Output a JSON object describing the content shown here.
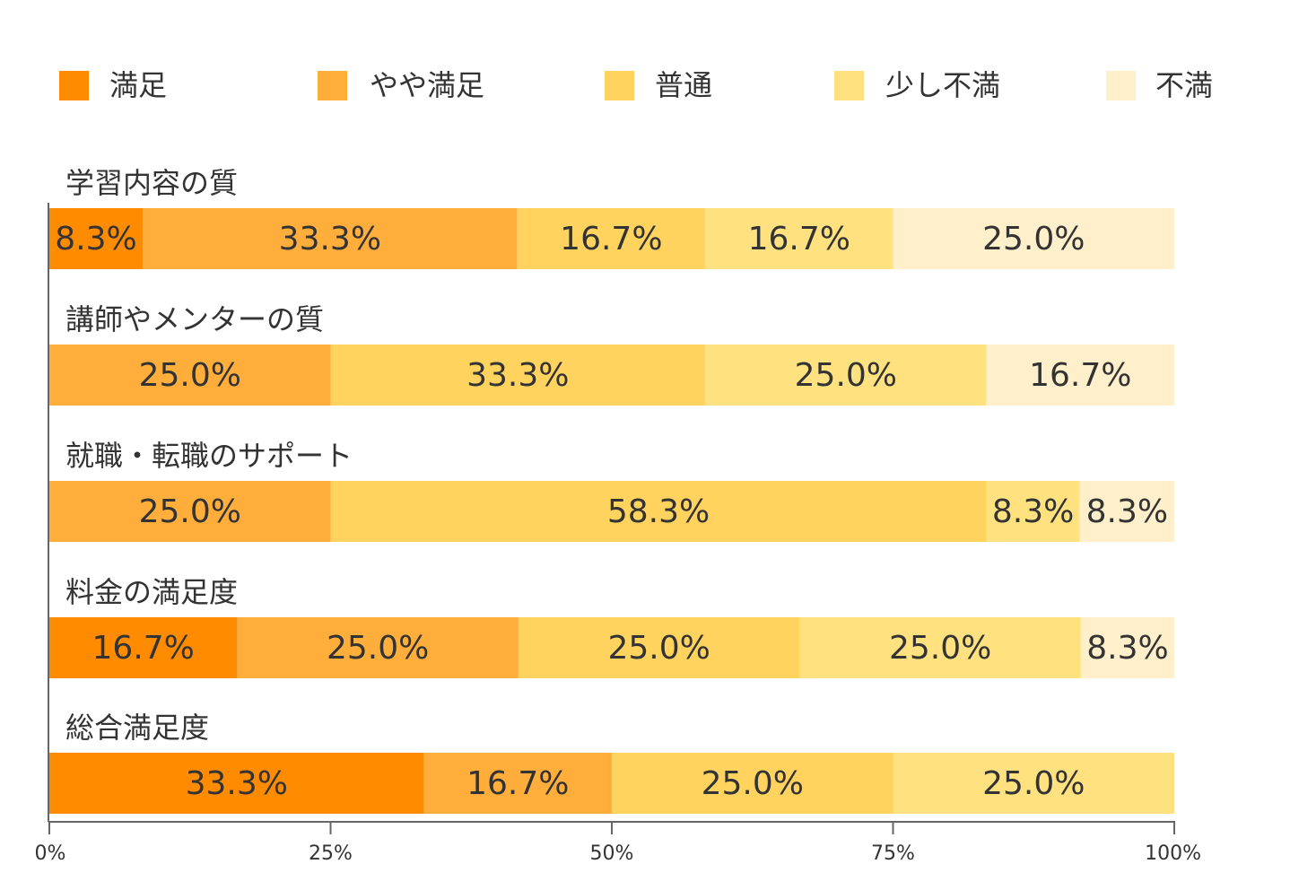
{
  "chart_data": {
    "type": "bar",
    "orientation": "horizontal",
    "stacked": true,
    "percent": true,
    "legend_position": "top",
    "series": [
      {
        "name": "満足",
        "color": "#ff8c00"
      },
      {
        "name": "やや満足",
        "color": "#ffae3c"
      },
      {
        "name": "普通",
        "color": "#ffd35e"
      },
      {
        "name": "少し不満",
        "color": "#ffe27f"
      },
      {
        "name": "不満",
        "color": "#fff0cb"
      }
    ],
    "categories": [
      "学習内容の質",
      "講師やメンターの質",
      "就職・転職のサポート",
      "料金の満足度",
      "総合満足度"
    ],
    "values": [
      [
        8.3,
        33.3,
        16.7,
        16.7,
        25.0
      ],
      [
        0,
        25.0,
        33.3,
        25.0,
        16.7
      ],
      [
        0,
        25.0,
        58.3,
        8.3,
        8.3
      ],
      [
        16.7,
        25.0,
        25.0,
        25.0,
        8.3
      ],
      [
        33.3,
        16.7,
        25.0,
        25.0,
        0
      ]
    ],
    "segment_labels": [
      [
        "8.3%",
        "33.3%",
        "16.7%",
        "16.7%",
        "25.0%"
      ],
      [
        "",
        "25.0%",
        "33.3%",
        "25.0%",
        "16.7%"
      ],
      [
        "",
        "25.0%",
        "58.3%",
        "8.3%",
        "8.3%"
      ],
      [
        "16.7%",
        "25.0%",
        "25.0%",
        "25.0%",
        "8.3%"
      ],
      [
        "33.3%",
        "16.7%",
        "25.0%",
        "25.0%",
        ""
      ]
    ],
    "x_ticks": [
      "0%",
      "25%",
      "50%",
      "75%",
      "100%"
    ],
    "xlim": [
      0,
      100
    ],
    "grid": false
  }
}
